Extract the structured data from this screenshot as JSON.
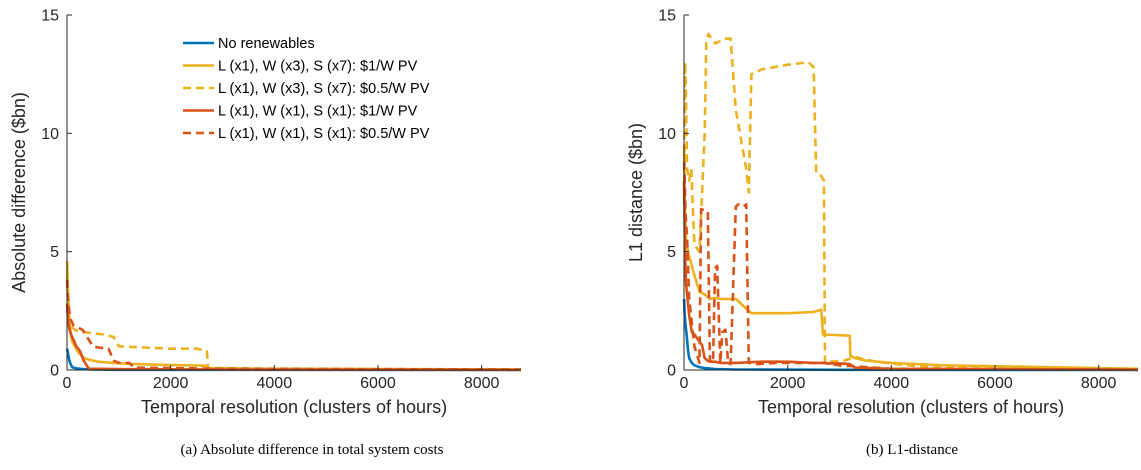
{
  "colors": {
    "blue": "#0072bd",
    "yellow": "#edb120",
    "orange": "#d95319",
    "axis": "#262626"
  },
  "captions": [
    "(a)  Absolute difference in total system costs",
    "(b)  L1-distance"
  ],
  "chart_data": [
    {
      "type": "line",
      "xlabel": "Temporal resolution (clusters of hours)",
      "ylabel": "Absolute difference ($bn)",
      "xlim": [
        0,
        8760
      ],
      "ylim": [
        0,
        15
      ],
      "xticks": [
        0,
        2000,
        4000,
        6000,
        8000
      ],
      "yticks": [
        0,
        5,
        10,
        15
      ],
      "x_tick_labels": [
        "0",
        "2000",
        "4000",
        "6000",
        "8000"
      ],
      "y_tick_labels": [
        "0",
        "5",
        "10",
        "15"
      ],
      "grid": false,
      "legend": {
        "placement": "top-center",
        "entries": [
          "No renewables",
          "L (x1), W (x3), S (x7): $1/W PV",
          "L (x1), W (x3), S (x7): $0.5/W PV",
          "L (x1), W (x1), S (x1): $1/W PV",
          "L (x1), W (x1), S (x1): $0.5/W PV"
        ]
      },
      "series": [
        {
          "name": "No renewables",
          "color": "#0072bd",
          "dash": "solid",
          "x": [
            1,
            20,
            40,
            60,
            100,
            200,
            300,
            500,
            1000,
            8760
          ],
          "y": [
            0.9,
            0.7,
            0.45,
            0.3,
            0.12,
            0.06,
            0.04,
            0.02,
            0.01,
            0.0
          ]
        },
        {
          "name": "L (x1), W (x3), S (x7): $1/W PV",
          "color": "#edb120",
          "dash": "solid",
          "x": [
            1,
            15,
            30,
            50,
            80,
            100,
            150,
            200,
            300,
            400,
            600,
            900,
            1300,
            1800,
            2300,
            2680,
            2700,
            3500,
            5000,
            8760
          ],
          "y": [
            4.6,
            3.6,
            2.9,
            2.0,
            1.4,
            1.2,
            1.0,
            0.8,
            0.55,
            0.45,
            0.35,
            0.3,
            0.25,
            0.22,
            0.2,
            0.18,
            0.08,
            0.06,
            0.05,
            0.02
          ]
        },
        {
          "name": "L (x1), W (x3), S (x7): $0.5/W PV",
          "color": "#edb120",
          "dash": "dashed",
          "x": [
            1,
            15,
            30,
            60,
            100,
            150,
            200,
            350,
            500,
            700,
            900,
            1000,
            1500,
            2000,
            2500,
            2600,
            2700,
            2720,
            4000,
            6000,
            8760
          ],
          "y": [
            4.0,
            3.0,
            2.3,
            1.9,
            1.8,
            1.7,
            1.65,
            1.6,
            1.55,
            1.5,
            1.4,
            1.0,
            0.95,
            0.9,
            0.9,
            0.85,
            0.8,
            0.08,
            0.05,
            0.03,
            0.02
          ]
        },
        {
          "name": "L (x1), W (x1), S (x1): $1/W PV",
          "color": "#d95319",
          "dash": "solid",
          "x": [
            1,
            10,
            25,
            50,
            80,
            120,
            180,
            250,
            320,
            380,
            420,
            600,
            1000,
            3000,
            8760
          ],
          "y": [
            2.8,
            2.4,
            2.0,
            1.7,
            1.5,
            1.3,
            1.0,
            0.8,
            0.4,
            0.2,
            0.05,
            0.05,
            0.04,
            0.02,
            0.01
          ]
        },
        {
          "name": "L (x1), W (x1), S (x1): $0.5/W PV",
          "color": "#d95319",
          "dash": "dashed",
          "x": [
            1,
            10,
            25,
            50,
            80,
            120,
            200,
            300,
            500,
            600,
            800,
            900,
            1000,
            1200,
            1300,
            2000,
            3000,
            8760
          ],
          "y": [
            3.8,
            3.3,
            2.8,
            2.4,
            2.1,
            1.9,
            1.8,
            1.7,
            1.0,
            0.95,
            0.9,
            0.4,
            0.3,
            0.3,
            0.1,
            0.08,
            0.05,
            0.02
          ]
        }
      ]
    },
    {
      "type": "line",
      "xlabel": "Temporal resolution (clusters of hours)",
      "ylabel": "L1 distance ($bn)",
      "xlim": [
        0,
        8760
      ],
      "ylim": [
        0,
        15
      ],
      "xticks": [
        0,
        2000,
        4000,
        6000,
        8000
      ],
      "yticks": [
        0,
        5,
        10,
        15
      ],
      "x_tick_labels": [
        "0",
        "2000",
        "4000",
        "6000",
        "8000"
      ],
      "y_tick_labels": [
        "0",
        "5",
        "10",
        "15"
      ],
      "grid": false,
      "series": [
        {
          "name": "No renewables",
          "color": "#0072bd",
          "dash": "solid",
          "x": [
            1,
            10,
            25,
            50,
            80,
            100,
            150,
            200,
            300,
            400,
            600,
            1000,
            3000,
            8760
          ],
          "y": [
            3.0,
            2.5,
            2.0,
            1.5,
            0.8,
            0.5,
            0.3,
            0.2,
            0.12,
            0.08,
            0.04,
            0.02,
            0.01,
            0.0
          ]
        },
        {
          "name": "L (x1), W (x3), S (x7): $1/W PV",
          "color": "#edb120",
          "dash": "solid",
          "x": [
            1,
            10,
            20,
            40,
            60,
            100,
            150,
            200,
            300,
            400,
            500,
            600,
            700,
            1000,
            1200,
            1300,
            2000,
            2500,
            2650,
            2680,
            2700,
            3200,
            3210,
            3300,
            3500,
            4000,
            5000,
            8760
          ],
          "y": [
            9.5,
            8.0,
            6.8,
            5.5,
            5.2,
            4.8,
            4.4,
            4.0,
            3.3,
            3.2,
            3.0,
            3.05,
            3.0,
            3.0,
            2.6,
            2.4,
            2.4,
            2.45,
            2.55,
            1.5,
            1.5,
            1.45,
            0.6,
            0.5,
            0.4,
            0.3,
            0.2,
            0.05
          ]
        },
        {
          "name": "L (x1), W (x3), S (x7): $0.5/W PV",
          "color": "#edb120",
          "dash": "dashed",
          "x": [
            1,
            20,
            30,
            60,
            100,
            140,
            170,
            200,
            300,
            400,
            430,
            470,
            600,
            800,
            900,
            1000,
            1200,
            1250,
            1300,
            1400,
            1500,
            2000,
            2400,
            2500,
            2550,
            2650,
            2700,
            2720,
            2800,
            3100,
            3300,
            3500,
            3700,
            3900,
            4100,
            4300,
            4600,
            4800,
            5200,
            6000,
            8760
          ],
          "y": [
            7.0,
            13.0,
            12.5,
            8.5,
            8.0,
            8.5,
            6.8,
            5.3,
            5.0,
            10.0,
            13.8,
            14.2,
            13.8,
            14.0,
            14.0,
            11.0,
            8.5,
            7.5,
            12.5,
            12.6,
            12.7,
            12.9,
            13.0,
            12.8,
            8.3,
            8.2,
            8.0,
            0.3,
            0.35,
            0.4,
            0.55,
            0.45,
            0.35,
            0.3,
            0.25,
            0.2,
            0.15,
            0.1,
            0.08,
            0.05,
            0.02
          ]
        },
        {
          "name": "L (x1), W (x1), S (x1): $1/W PV",
          "color": "#d95319",
          "dash": "solid",
          "x": [
            1,
            10,
            20,
            40,
            60,
            100,
            150,
            200,
            250,
            300,
            350,
            400,
            450,
            500,
            600,
            700,
            1000,
            1500,
            2000,
            2500,
            2700,
            2750,
            3000,
            3200,
            3300,
            4000,
            8760
          ],
          "y": [
            8.0,
            6.5,
            5.0,
            3.6,
            3.2,
            2.3,
            1.6,
            1.5,
            1.35,
            1.2,
            1.05,
            0.5,
            0.4,
            0.35,
            0.35,
            0.3,
            0.3,
            0.35,
            0.35,
            0.3,
            0.3,
            0.28,
            0.28,
            0.25,
            0.1,
            0.05,
            0.02
          ]
        },
        {
          "name": "L (x1), W (x1), S (x1): $0.5/W PV",
          "color": "#d95319",
          "dash": "dashed",
          "x": [
            1,
            15,
            30,
            60,
            100,
            200,
            300,
            330,
            460,
            500,
            560,
            600,
            640,
            700,
            740,
            800,
            850,
            900,
            1000,
            1050,
            1150,
            1200,
            1250,
            1300,
            1400,
            1800,
            2000,
            2500,
            2600,
            2700,
            3000,
            4000,
            8760
          ],
          "y": [
            8.8,
            8.0,
            6.6,
            5.6,
            3.0,
            1.0,
            0.3,
            6.8,
            6.7,
            0.4,
            0.3,
            4.3,
            4.4,
            0.3,
            1.6,
            1.7,
            0.3,
            0.25,
            6.9,
            7.0,
            6.9,
            7.0,
            0.3,
            0.3,
            0.25,
            0.3,
            0.3,
            0.3,
            0.3,
            0.3,
            0.2,
            0.05,
            0.01
          ]
        }
      ]
    }
  ]
}
